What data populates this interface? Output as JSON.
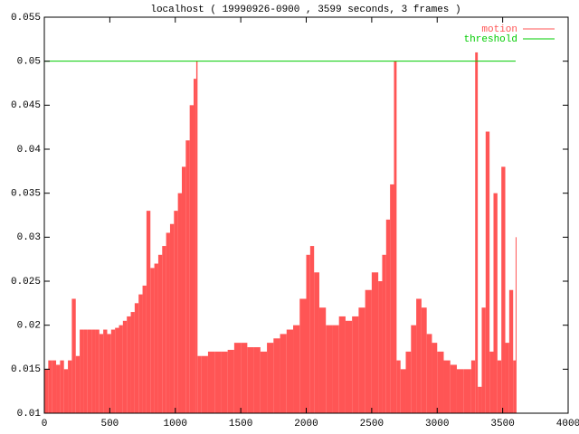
{
  "chart_data": {
    "type": "impulse",
    "title": "localhost ( 19990926-0900 , 3599 seconds, 3 frames )",
    "xlim": [
      0,
      4000
    ],
    "ylim": [
      0.01,
      0.055
    ],
    "xticks": [
      0,
      500,
      1000,
      1500,
      2000,
      2500,
      3000,
      3500,
      4000
    ],
    "yticks": [
      0.01,
      0.015,
      0.02,
      0.025,
      0.03,
      0.035,
      0.04,
      0.045,
      0.05,
      0.055
    ],
    "legend": "upper right",
    "grid": false,
    "series": [
      {
        "name": "motion",
        "color": "#ff5555",
        "x": [
          0,
          30,
          60,
          90,
          120,
          150,
          180,
          210,
          240,
          270,
          300,
          330,
          360,
          390,
          420,
          450,
          480,
          510,
          540,
          570,
          600,
          630,
          660,
          690,
          720,
          750,
          780,
          810,
          840,
          870,
          900,
          930,
          960,
          990,
          1020,
          1050,
          1080,
          1110,
          1140,
          1160,
          1170,
          1200,
          1250,
          1300,
          1350,
          1400,
          1450,
          1500,
          1550,
          1600,
          1650,
          1700,
          1750,
          1800,
          1850,
          1900,
          1950,
          2000,
          2030,
          2060,
          2100,
          2150,
          2200,
          2250,
          2300,
          2350,
          2400,
          2450,
          2500,
          2550,
          2580,
          2610,
          2640,
          2670,
          2690,
          2720,
          2760,
          2800,
          2840,
          2880,
          2920,
          2960,
          3000,
          3050,
          3100,
          3150,
          3200,
          3260,
          3290,
          3310,
          3340,
          3370,
          3400,
          3430,
          3460,
          3490,
          3520,
          3550,
          3580,
          3599
        ],
        "values": [
          0.015,
          0.016,
          0.016,
          0.0155,
          0.016,
          0.015,
          0.016,
          0.023,
          0.0165,
          0.0195,
          0.0195,
          0.0195,
          0.0195,
          0.0195,
          0.019,
          0.0195,
          0.019,
          0.0195,
          0.0197,
          0.02,
          0.0205,
          0.021,
          0.0215,
          0.0225,
          0.0235,
          0.0245,
          0.033,
          0.0265,
          0.027,
          0.028,
          0.029,
          0.0305,
          0.0315,
          0.033,
          0.035,
          0.038,
          0.041,
          0.045,
          0.048,
          0.05,
          0.0165,
          0.0165,
          0.017,
          0.017,
          0.017,
          0.0172,
          0.018,
          0.018,
          0.0175,
          0.0175,
          0.017,
          0.018,
          0.0185,
          0.019,
          0.0195,
          0.02,
          0.023,
          0.028,
          0.029,
          0.026,
          0.022,
          0.02,
          0.02,
          0.021,
          0.0205,
          0.021,
          0.022,
          0.024,
          0.026,
          0.025,
          0.028,
          0.032,
          0.036,
          0.05,
          0.016,
          0.015,
          0.017,
          0.02,
          0.023,
          0.022,
          0.019,
          0.018,
          0.017,
          0.016,
          0.0155,
          0.015,
          0.015,
          0.016,
          0.051,
          0.013,
          0.022,
          0.042,
          0.017,
          0.035,
          0.016,
          0.038,
          0.018,
          0.024,
          0.016,
          0.03
        ]
      },
      {
        "name": "threshold",
        "color": "#00cc00",
        "x": [
          0,
          3599
        ],
        "values": [
          0.05,
          0.05
        ]
      }
    ]
  }
}
